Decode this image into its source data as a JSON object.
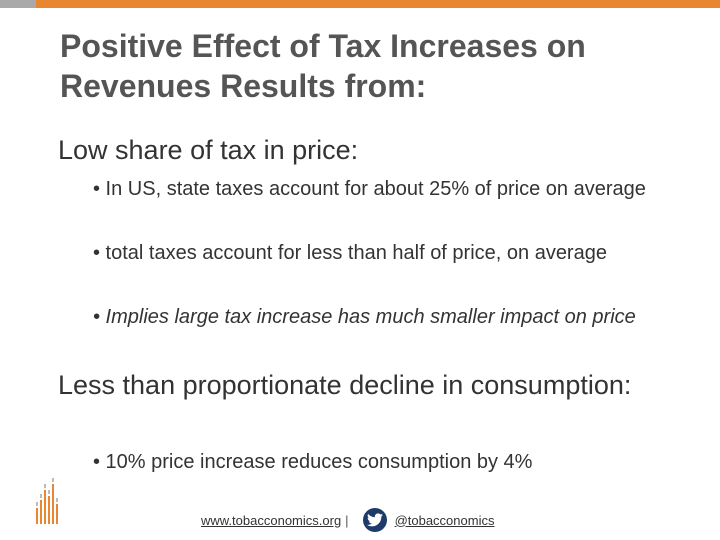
{
  "slide": {
    "title": "Positive Effect of Tax Increases on Revenues Results from:",
    "section1": {
      "heading": "Low share of tax in price:",
      "bullets": [
        "• In US, state taxes account for about 25% of price on average",
        "• total taxes account for less than half of price, on average",
        "• Implies large tax increase has  much smaller impact on price"
      ]
    },
    "section2": {
      "heading": "Less than proportionate decline in consumption:",
      "bullets": [
        "• 10% price increase reduces consumption by 4%"
      ]
    }
  },
  "footer": {
    "website": "www.tobacconomics.org",
    "separator": "|",
    "twitter_handle": "@tobacconomics"
  },
  "icons": {
    "logo": "tobacconomics-bars-logo",
    "twitter": "twitter-bird-icon"
  },
  "colors": {
    "accent_orange": "#e8872f",
    "accent_gray": "#a9a9a9",
    "twitter_bg": "#1d3b6a"
  }
}
